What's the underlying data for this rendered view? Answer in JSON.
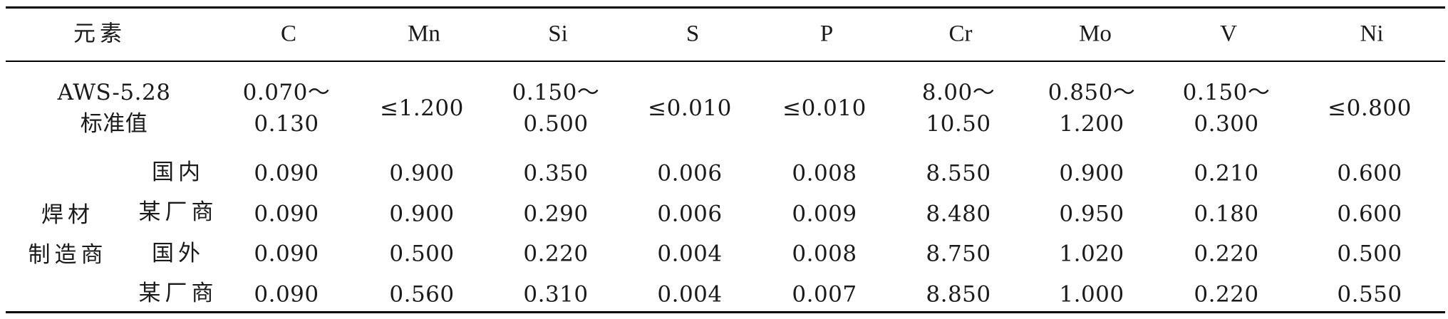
{
  "table": {
    "header": {
      "element_label": "元素",
      "columns": [
        "C",
        "Mn",
        "Si",
        "S",
        "P",
        "Cr",
        "Mo",
        "V",
        "Ni"
      ]
    },
    "standard": {
      "label": "AWS-5.28\n标准值",
      "values": [
        "0.070～\n0.130",
        "≤1.200",
        "0.150～\n0.500",
        "≤0.010",
        "≤0.010",
        "8.00～\n10.50",
        "0.850～\n1.200",
        "0.150～\n0.300",
        "≤0.800"
      ]
    },
    "manufacturer_group": {
      "label": "焊材\n制造商",
      "domestic_label": "国内\n某厂商",
      "foreign_label": "国外\n某厂商",
      "rows": [
        [
          "0.090",
          "0.900",
          "0.350",
          "0.006",
          "0.008",
          "8.550",
          "0.900",
          "0.210",
          "0.600"
        ],
        [
          "0.090",
          "0.900",
          "0.290",
          "0.006",
          "0.009",
          "8.480",
          "0.950",
          "0.180",
          "0.600"
        ],
        [
          "0.090",
          "0.500",
          "0.220",
          "0.004",
          "0.008",
          "8.750",
          "1.020",
          "0.220",
          "0.500"
        ],
        [
          "0.090",
          "0.560",
          "0.310",
          "0.004",
          "0.007",
          "8.850",
          "1.000",
          "0.220",
          "0.550"
        ]
      ]
    }
  }
}
